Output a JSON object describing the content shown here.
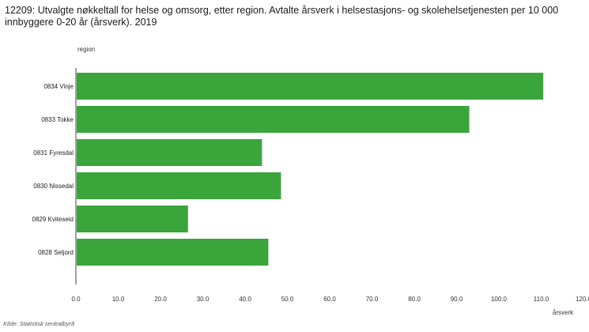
{
  "chart_data": {
    "type": "bar",
    "orientation": "horizontal",
    "title": "12209: Utvalgte nøkkeltall for helse og omsorg, etter region. Avtalte årsverk i helsestasjons- og skolehelsetjenesten per 10 000 innbyggere 0-20 år (årsverk). 2019",
    "category_axis_title": "region",
    "value_axis_title": "årsverk",
    "categories": [
      "0834 Vinje",
      "0833 Tokke",
      "0831 Fyresdal",
      "0830 Nissedal",
      "0829 Kviteseid",
      "0828 Seljord"
    ],
    "values": [
      110.5,
      93.0,
      44.0,
      48.5,
      26.5,
      45.5
    ],
    "xlim": [
      0,
      120
    ],
    "x_ticks": [
      "0.0",
      "10.0",
      "20.0",
      "30.0",
      "40.0",
      "50.0",
      "60.0",
      "70.0",
      "80.0",
      "90.0",
      "100.0",
      "110.0",
      "120.0"
    ],
    "bar_color": "#3aa53a",
    "grid": false,
    "legend": "none"
  },
  "source": "Kilde: Statistisk sentralbyrå"
}
